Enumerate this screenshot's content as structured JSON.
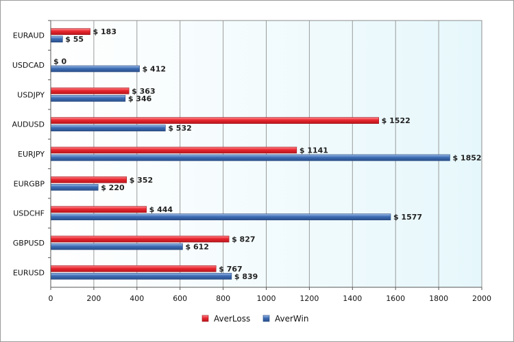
{
  "chart_data": {
    "type": "bar",
    "orientation": "horizontal",
    "title": "",
    "xlabel": "",
    "ylabel": "",
    "xlim": [
      0,
      2000
    ],
    "ticks": [
      "0",
      "200",
      "400",
      "600",
      "800",
      "1000",
      "1200",
      "1400",
      "1600",
      "1800",
      "2000"
    ],
    "tick_values": [
      0,
      200,
      400,
      600,
      800,
      1000,
      1200,
      1400,
      1600,
      1800,
      2000
    ],
    "value_prefix": "$ ",
    "grid": true,
    "legend_position": "bottom-center",
    "categories": [
      "EURAUD",
      "USDCAD",
      "USDJPY",
      "AUDUSD",
      "EURJPY",
      "EURGBP",
      "USDCHF",
      "GBPUSD",
      "EURUSD"
    ],
    "series": [
      {
        "name": "AverLoss",
        "color": "#e8252e",
        "values": [
          183,
          0,
          363,
          1522,
          1141,
          352,
          444,
          827,
          767
        ]
      },
      {
        "name": "AverWin",
        "color": "#3d6db5",
        "values": [
          55,
          412,
          346,
          532,
          1852,
          220,
          1577,
          612,
          839
        ]
      }
    ]
  }
}
